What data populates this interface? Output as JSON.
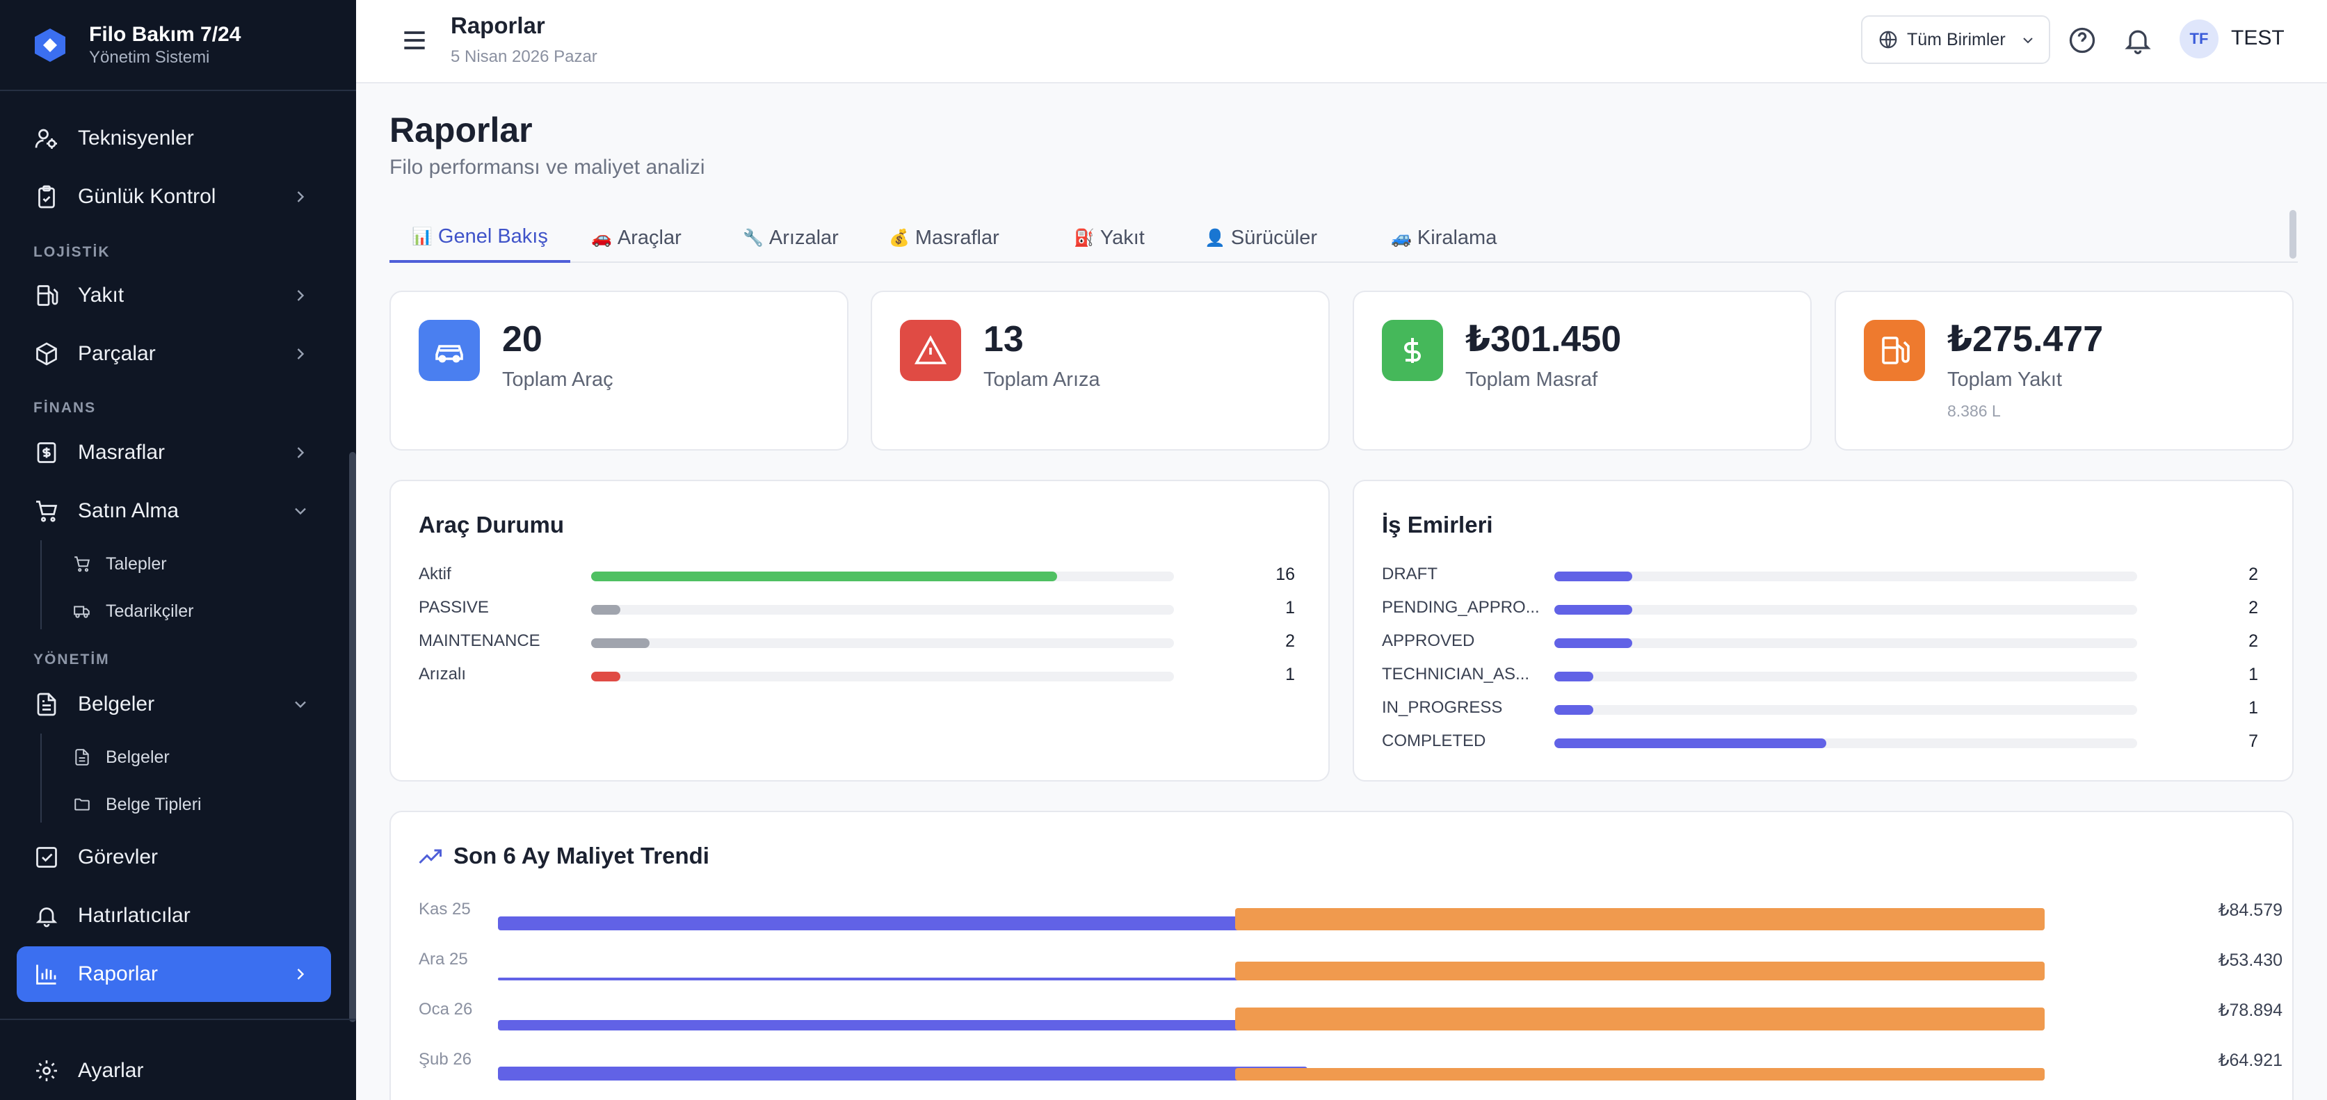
{
  "brand": {
    "title": "Filo Bakım 7/24",
    "subtitle": "Yönetim Sistemi"
  },
  "sidebar": {
    "sections": {
      "logistics": "LOJİSTİK",
      "finance": "FİNANS",
      "management": "YÖNETİM"
    },
    "items": {
      "technicians": "Teknisyenler",
      "daily_check": "Günlük Kontrol",
      "fuel": "Yakıt",
      "parts": "Parçalar",
      "expenses": "Masraflar",
      "purchasing": "Satın Alma",
      "requests": "Talepler",
      "suppliers": "Tedarikçiler",
      "documents": "Belgeler",
      "documents_sub": "Belgeler",
      "document_types": "Belge Tipleri",
      "tasks": "Görevler",
      "reminders": "Hatırlatıcılar",
      "reports": "Raporlar",
      "settings": "Ayarlar"
    }
  },
  "topbar": {
    "title": "Raporlar",
    "date": "5 Nisan 2026 Pazar",
    "unit_select": "Tüm Birimler",
    "avatar_initials": "TF",
    "user_name": "TEST"
  },
  "page": {
    "title": "Raporlar",
    "subtitle": "Filo performansı ve maliyet analizi"
  },
  "tabs": [
    {
      "emoji": "📊",
      "label": "Genel Bakış"
    },
    {
      "emoji": "🚗",
      "label": "Araçlar"
    },
    {
      "emoji": "🔧",
      "label": "Arızalar"
    },
    {
      "emoji": "💰",
      "label": "Masraflar"
    },
    {
      "emoji": "⛽",
      "label": "Yakıt"
    },
    {
      "emoji": "👤",
      "label": "Sürücüler"
    },
    {
      "emoji": "🚙",
      "label": "Kiralama"
    }
  ],
  "stats": [
    {
      "value": "20",
      "label": "Toplam Araç",
      "color": "#4a7ff0",
      "icon": "car-icon"
    },
    {
      "value": "13",
      "label": "Toplam Arıza",
      "color": "#e04b44",
      "icon": "warning-icon"
    },
    {
      "value": "₺301.450",
      "label": "Toplam Masraf",
      "color": "#45b85a",
      "icon": "dollar-icon"
    },
    {
      "value": "₺275.477",
      "label": "Toplam Yakıt",
      "extra": "8.386 L",
      "color": "#ee7a2e",
      "icon": "fuel-icon"
    }
  ],
  "vehicle_status": {
    "title": "Araç Durumu",
    "max": 20,
    "rows": [
      {
        "label": "Aktif",
        "count": 16,
        "color": "#4fc062"
      },
      {
        "label": "PASSIVE",
        "count": 1,
        "color": "#a0a4ad"
      },
      {
        "label": "MAINTENANCE",
        "count": 2,
        "color": "#a0a4ad"
      },
      {
        "label": "Arızalı",
        "count": 1,
        "color": "#e04b44"
      }
    ]
  },
  "work_orders": {
    "title": "İş Emirleri",
    "max": 15,
    "rows": [
      {
        "label": "DRAFT",
        "count": 2,
        "color": "#6162e6"
      },
      {
        "label": "PENDING_APPRO...",
        "count": 2,
        "color": "#6162e6"
      },
      {
        "label": "APPROVED",
        "count": 2,
        "color": "#6162e6"
      },
      {
        "label": "TECHNICIAN_AS...",
        "count": 1,
        "color": "#6162e6"
      },
      {
        "label": "IN_PROGRESS",
        "count": 1,
        "color": "#6162e6"
      },
      {
        "label": "COMPLETED",
        "count": 7,
        "color": "#6162e6"
      }
    ]
  },
  "trend": {
    "title": "Son 6 Ay Maliyet Trendi",
    "series_colors": [
      "#6162e6",
      "#f09a4e"
    ],
    "rows": [
      {
        "label": "Kas 25",
        "total": "₺84.579",
        "a": 0.33,
        "b": 0.53
      },
      {
        "label": "Ara 25",
        "total": "₺53.430",
        "a": 0.05,
        "b": 0.45
      },
      {
        "label": "Oca 26",
        "total": "₺78.894",
        "a": 0.25,
        "b": 0.55
      },
      {
        "label": "Şub 26",
        "total": "₺64.921",
        "a": 0.33,
        "b": 0.3
      }
    ]
  }
}
